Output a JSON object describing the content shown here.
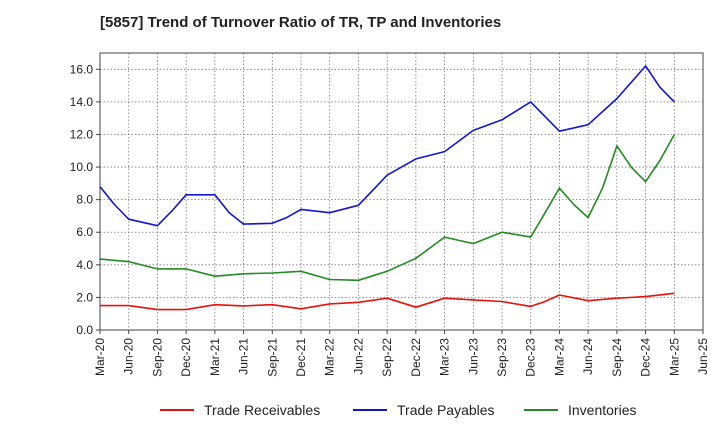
{
  "chart_data": {
    "type": "line",
    "title": "[5857]  Trend of Turnover Ratio of TR, TP and Inventories",
    "xlabel": "",
    "ylabel": "",
    "ylim": [
      0,
      17
    ],
    "yticks": [
      0.0,
      2.0,
      4.0,
      6.0,
      8.0,
      10.0,
      12.0,
      14.0,
      16.0
    ],
    "ytick_labels": [
      "0.0",
      "2.0",
      "4.0",
      "6.0",
      "8.0",
      "10.0",
      "12.0",
      "14.0",
      "16.0"
    ],
    "x_tick_labels": [
      "Mar-20",
      "Jun-20",
      "Sep-20",
      "Dec-20",
      "Mar-21",
      "Jun-21",
      "Sep-21",
      "Dec-21",
      "Mar-22",
      "Jun-22",
      "Sep-22",
      "Dec-22",
      "Mar-23",
      "Jun-23",
      "Sep-23",
      "Dec-23",
      "Mar-24",
      "Jun-24",
      "Sep-24",
      "Dec-24",
      "Mar-25",
      "Jun-25"
    ],
    "grid": true,
    "legend_position": "bottom",
    "series": [
      {
        "name": "Trade Receivables",
        "color": "#e8120c",
        "points": [
          [
            0,
            1.5
          ],
          [
            1,
            1.5
          ],
          [
            2,
            1.25
          ],
          [
            3,
            1.25
          ],
          [
            4,
            1.55
          ],
          [
            5,
            1.48
          ],
          [
            6,
            1.55
          ],
          [
            7,
            1.3
          ],
          [
            8,
            1.6
          ],
          [
            9,
            1.7
          ],
          [
            10,
            1.95
          ],
          [
            11,
            1.4
          ],
          [
            12,
            1.95
          ],
          [
            13,
            1.85
          ],
          [
            14,
            1.75
          ],
          [
            15,
            1.45
          ],
          [
            15.5,
            1.75
          ],
          [
            16,
            2.15
          ],
          [
            17,
            1.8
          ],
          [
            18,
            1.95
          ],
          [
            19,
            2.05
          ],
          [
            20,
            2.25
          ]
        ]
      },
      {
        "name": "Trade Payables",
        "color": "#1414d4",
        "points": [
          [
            0,
            8.8
          ],
          [
            0.5,
            7.7
          ],
          [
            1,
            6.8
          ],
          [
            2,
            6.4
          ],
          [
            2.5,
            7.3
          ],
          [
            3,
            8.3
          ],
          [
            4,
            8.3
          ],
          [
            4.5,
            7.2
          ],
          [
            5,
            6.5
          ],
          [
            6,
            6.55
          ],
          [
            6.5,
            6.9
          ],
          [
            7,
            7.4
          ],
          [
            8,
            7.2
          ],
          [
            9,
            7.65
          ],
          [
            10,
            9.5
          ],
          [
            11,
            10.5
          ],
          [
            12,
            10.95
          ],
          [
            13,
            12.25
          ],
          [
            14,
            12.9
          ],
          [
            15,
            14.0
          ],
          [
            16,
            12.2
          ],
          [
            17,
            12.6
          ],
          [
            18,
            14.2
          ],
          [
            19,
            16.2
          ],
          [
            19.5,
            14.9
          ],
          [
            20,
            14.0
          ]
        ]
      },
      {
        "name": "Inventories",
        "color": "#228b22",
        "points": [
          [
            0,
            4.35
          ],
          [
            1,
            4.2
          ],
          [
            2,
            3.75
          ],
          [
            3,
            3.75
          ],
          [
            4,
            3.3
          ],
          [
            5,
            3.45
          ],
          [
            6,
            3.5
          ],
          [
            7,
            3.6
          ],
          [
            8,
            3.1
          ],
          [
            9,
            3.05
          ],
          [
            10,
            3.6
          ],
          [
            11,
            4.4
          ],
          [
            12,
            5.7
          ],
          [
            13,
            5.3
          ],
          [
            14,
            6.0
          ],
          [
            15,
            5.7
          ],
          [
            15.5,
            7.2
          ],
          [
            16,
            8.7
          ],
          [
            16.5,
            7.7
          ],
          [
            17,
            6.9
          ],
          [
            17.5,
            8.7
          ],
          [
            18,
            11.3
          ],
          [
            18.5,
            10.0
          ],
          [
            19,
            9.1
          ],
          [
            19.5,
            10.4
          ],
          [
            20,
            12.0
          ]
        ]
      }
    ]
  }
}
